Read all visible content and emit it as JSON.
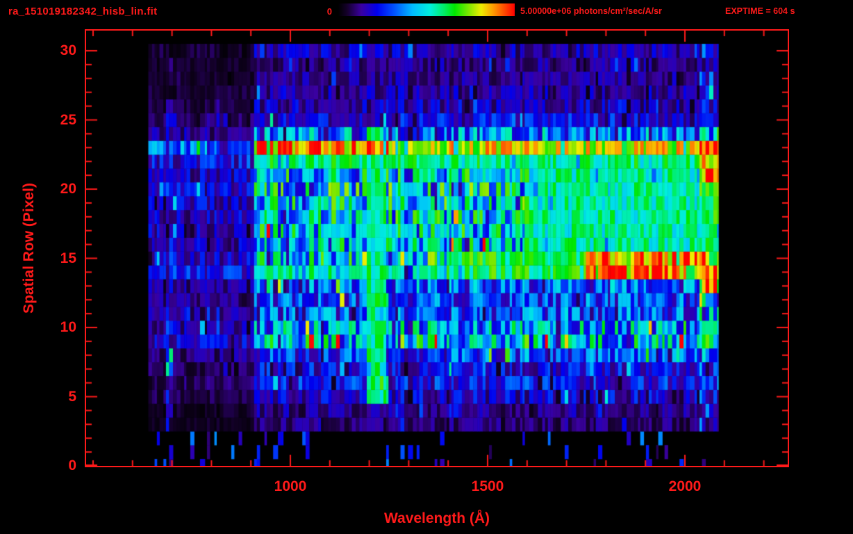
{
  "colors": {
    "accent": "#ff1a1a",
    "background": "#000000"
  },
  "header": {
    "title": "ra_151019182342_hisb_lin.fit",
    "colorbar_min_label": "0",
    "colorbar_max_label": "5.00000e+06 photons/cm²/sec/A/sr",
    "exptime_label": "EXPTIME = 604 s"
  },
  "chart_data": {
    "type": "heatmap",
    "title": "ra_151019182342_hisb_lin.fit",
    "xlabel": "Wavelength (Å)",
    "ylabel": "Spatial Row (Pixel)",
    "xlim": [
      480,
      2266
    ],
    "ylim": [
      0,
      31
    ],
    "x_ticks": [
      1000,
      1500,
      2000
    ],
    "y_ticks": [
      0,
      5,
      10,
      15,
      20,
      25,
      30
    ],
    "annotations": [
      "EXPTIME = 604 s"
    ],
    "data_range": {
      "wavelength_min": 640,
      "wavelength_max": 2085
    },
    "colorbar": {
      "min": 0,
      "max": 5000000,
      "max_label": "5.00000e+06",
      "units": "photons/cm²/sec/A/sr",
      "stops": [
        {
          "pos": 0.0,
          "color": "#000000"
        },
        {
          "pos": 0.05,
          "color": "#14002a"
        },
        {
          "pos": 0.13,
          "color": "#3a00a0"
        },
        {
          "pos": 0.22,
          "color": "#0000ee"
        },
        {
          "pos": 0.32,
          "color": "#0055ff"
        },
        {
          "pos": 0.42,
          "color": "#00bbff"
        },
        {
          "pos": 0.52,
          "color": "#00eedd"
        },
        {
          "pos": 0.6,
          "color": "#00ee66"
        },
        {
          "pos": 0.66,
          "color": "#00e800"
        },
        {
          "pos": 0.74,
          "color": "#7fe800"
        },
        {
          "pos": 0.81,
          "color": "#eeee00"
        },
        {
          "pos": 0.88,
          "color": "#ff9900"
        },
        {
          "pos": 1.0,
          "color": "#ff0000"
        }
      ]
    },
    "row_base_intensity": [
      0.015,
      0.02,
      0.03,
      0.1,
      0.12,
      0.18,
      0.22,
      0.2,
      0.28,
      0.45,
      0.4,
      0.3,
      0.28,
      0.32,
      0.55,
      0.5,
      0.42,
      0.44,
      0.45,
      0.46,
      0.47,
      0.44,
      0.58,
      0.78,
      0.35,
      0.2,
      0.16,
      0.14,
      0.12,
      0.12,
      0.15
    ],
    "features": [
      {
        "name": "left-low-signal-region",
        "rows": [
          0,
          30
        ],
        "wl": [
          480,
          905
        ],
        "scale": 0.38
      },
      {
        "name": "absorption-lane-1025",
        "rows": [
          4,
          21
        ],
        "wl": [
          1012,
          1038
        ],
        "scale": 0.72
      },
      {
        "name": "absorption-lane-1300",
        "rows": [
          4,
          21
        ],
        "wl": [
          1292,
          1315
        ],
        "scale": 0.72
      },
      {
        "name": "right-edge-bright-column",
        "rows": [
          2,
          30
        ],
        "wl": [
          2038,
          2085
        ],
        "scale": 1.35
      },
      {
        "name": "faint-vertical-line-690",
        "rows": [
          3,
          26
        ],
        "wl": [
          686,
          698
        ],
        "boost": 0.2
      },
      {
        "name": "bright-band-row23-orange",
        "rows": [
          23,
          23
        ],
        "wl": [
          905,
          1255
        ],
        "boost": 0.88
      },
      {
        "name": "bright-band-row23-yellow",
        "rows": [
          23,
          23
        ],
        "wl": [
          1255,
          2085
        ],
        "boost": 0.74
      },
      {
        "name": "green-band-row22",
        "rows": [
          22,
          22
        ],
        "wl": [
          905,
          2085
        ],
        "boost": 0.58
      },
      {
        "name": "green-right-rows16-21",
        "rows": [
          16,
          21
        ],
        "wl": [
          1600,
          2060
        ],
        "boost": 0.55
      },
      {
        "name": "bright-band-rows14-15",
        "rows": [
          14,
          15
        ],
        "wl": [
          1395,
          2060
        ],
        "boost": 0.62
      },
      {
        "name": "red-core-rows14-15",
        "rows": [
          14,
          15
        ],
        "wl": [
          1750,
          2055
        ],
        "boost": 0.92
      },
      {
        "name": "lyman-alpha-stripe-1216",
        "rows": [
          5,
          24
        ],
        "wl": [
          1198,
          1240
        ],
        "boost": 0.56
      },
      {
        "name": "stripe-bright-tip-row5",
        "rows": [
          5,
          6
        ],
        "wl": [
          1198,
          1248
        ],
        "boost": 0.6
      },
      {
        "name": "right-edge-red-blob-row13",
        "rows": [
          13,
          14
        ],
        "wl": [
          2045,
          2085
        ],
        "boost": 0.97
      },
      {
        "name": "right-edge-red-blob-row21",
        "rows": [
          21,
          21
        ],
        "wl": [
          2045,
          2085
        ],
        "boost": 0.95
      }
    ]
  }
}
